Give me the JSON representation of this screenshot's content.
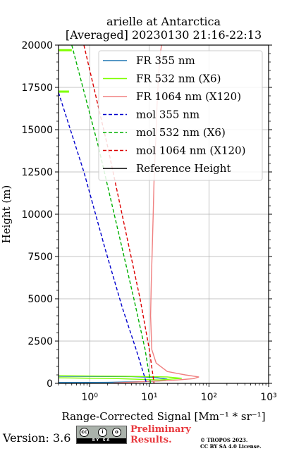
{
  "chart_data": {
    "type": "line",
    "title": "arielle at Antarctica",
    "subtitle": "[Averaged] 20230130 21:16-22:13",
    "xlabel": "Range-Corrected Signal [Mm⁻¹ * sr⁻¹]",
    "ylabel": "Height (m)",
    "xscale": "log",
    "xlim": [
      0.3,
      1000
    ],
    "ylim": [
      0,
      20000
    ],
    "x_ticks": [
      1,
      10,
      100,
      1000
    ],
    "x_tick_labels": [
      "10⁰",
      "10¹",
      "10²",
      "10³"
    ],
    "y_ticks": [
      0,
      2500,
      5000,
      7500,
      10000,
      12500,
      15000,
      17500,
      20000
    ],
    "y_tick_labels": [
      "0",
      "2500",
      "5000",
      "7500",
      "10000",
      "12500",
      "15000",
      "17500",
      "20000"
    ],
    "grid": true,
    "legend_position": "top-right",
    "series": [
      {
        "name": "FR 355 nm",
        "color": "#1f77b4",
        "style": "solid",
        "x": [
          0.3,
          2,
          8,
          15,
          20,
          12,
          5,
          0.3
        ],
        "y": [
          50,
          60,
          100,
          150,
          250,
          350,
          400,
          420
        ]
      },
      {
        "name": "FR 532 nm (X6)",
        "color": "#7fff00",
        "style": "solid",
        "x": [
          0.3,
          3,
          15,
          35,
          20,
          4,
          0.3
        ],
        "y": [
          330,
          280,
          200,
          300,
          380,
          420,
          450
        ],
        "segments": [
          {
            "x": [
              0.3,
              0.5
            ],
            "y": [
              19700,
              19700
            ]
          },
          {
            "x": [
              0.3,
              0.45
            ],
            "y": [
              17250,
              17250
            ]
          }
        ]
      },
      {
        "name": "FR 1064 nm (X120)",
        "color": "#f08080",
        "style": "solid",
        "x": [
          2.5,
          8,
          25,
          55,
          68,
          40,
          20,
          13,
          11,
          10.5,
          10.8,
          11.2,
          11.6,
          12,
          12.5,
          13,
          13.5,
          14.2,
          15,
          16
        ],
        "y": [
          20,
          100,
          180,
          280,
          380,
          500,
          700,
          1200,
          2000,
          4000,
          6000,
          8000,
          10000,
          12000,
          13500,
          15000,
          16500,
          18000,
          19300,
          20000
        ]
      },
      {
        "name": "mol 355 nm",
        "color": "#0000cd",
        "style": "dashed",
        "x": [
          0.3,
          0.8,
          1.8,
          3.5,
          6,
          9
        ],
        "y": [
          17200,
          12500,
          8000,
          4500,
          2000,
          0
        ]
      },
      {
        "name": "mol 532 nm (X6)",
        "color": "#00b000",
        "style": "dashed",
        "x": [
          0.5,
          1.4,
          3,
          5.5,
          8.5,
          10.5
        ],
        "y": [
          20000,
          14000,
          9000,
          5000,
          2000,
          0
        ]
      },
      {
        "name": "mol 1064 nm (X120)",
        "color": "#dc0000",
        "style": "dashed",
        "x": [
          0.8,
          2,
          4,
          7,
          10,
          12
        ],
        "y": [
          20000,
          14000,
          9000,
          5000,
          2000,
          0
        ]
      },
      {
        "name": "Reference Height",
        "color": "#000000",
        "style": "solid",
        "x": [],
        "y": []
      }
    ]
  },
  "footer": {
    "version": "Version: 3.6",
    "preliminary": [
      "Preliminary",
      "Results."
    ],
    "copyright": [
      "© TROPOS 2023.",
      "CC BY SA 4.0 License."
    ],
    "cc_badge_text": "BY  SA"
  }
}
